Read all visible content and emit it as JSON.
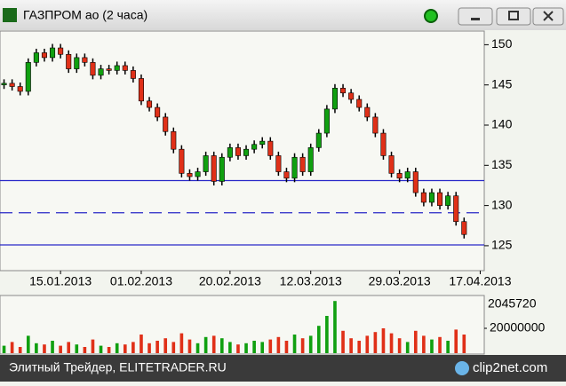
{
  "window": {
    "title": "ГАЗПРОМ ао (2 часа)"
  },
  "footer": {
    "text": "Элитный Трейдер, ELITETRADER.RU",
    "logo": "clip2net.com"
  },
  "chart_data": [
    {
      "type": "candlestick",
      "open": [
        145.0,
        145.2,
        144.8,
        144.2,
        147.8,
        149.0,
        148.4,
        149.6,
        148.8,
        147.0,
        148.4,
        147.8,
        146.2,
        147.0,
        146.8,
        147.4,
        146.8,
        145.8,
        143.0,
        142.2,
        141.0,
        139.2,
        137.0,
        134.0,
        133.6,
        134.2,
        136.2,
        133.0,
        136.0,
        137.2,
        136.2,
        137.0,
        137.6,
        138.0,
        136.2,
        134.2,
        133.4,
        136.0,
        134.2,
        137.2,
        139.0,
        142.0,
        144.6,
        144.0,
        143.2,
        142.2,
        141.0,
        139.0,
        136.2,
        134.0,
        133.4,
        134.2,
        131.6,
        130.4,
        131.6,
        130.0,
        131.2,
        128.0
      ],
      "high": [
        145.7,
        145.7,
        145.3,
        148.3,
        149.5,
        149.5,
        150.1,
        150.1,
        149.3,
        148.9,
        148.9,
        148.3,
        147.5,
        147.5,
        147.9,
        147.9,
        147.3,
        146.3,
        143.5,
        142.7,
        141.5,
        139.7,
        137.5,
        134.5,
        134.7,
        136.7,
        136.7,
        136.5,
        137.7,
        137.7,
        137.5,
        138.1,
        138.5,
        138.5,
        136.7,
        134.7,
        136.5,
        136.5,
        137.7,
        139.5,
        142.5,
        145.1,
        145.1,
        144.5,
        143.7,
        142.7,
        141.5,
        139.5,
        136.7,
        134.5,
        134.7,
        134.7,
        132.1,
        132.1,
        132.1,
        131.7,
        131.7,
        128.5
      ],
      "low": [
        144.5,
        144.3,
        143.7,
        143.7,
        147.3,
        147.9,
        147.9,
        148.3,
        146.5,
        146.5,
        147.3,
        145.7,
        145.7,
        146.3,
        146.3,
        146.3,
        145.3,
        142.5,
        141.7,
        140.5,
        138.7,
        136.5,
        133.5,
        133.1,
        133.1,
        133.7,
        132.5,
        132.5,
        135.5,
        135.7,
        135.7,
        136.5,
        137.1,
        135.7,
        133.7,
        132.9,
        132.9,
        133.7,
        133.7,
        136.7,
        138.5,
        141.5,
        143.5,
        142.7,
        141.7,
        140.5,
        138.5,
        135.7,
        133.5,
        132.9,
        132.9,
        131.1,
        129.9,
        129.9,
        129.5,
        129.5,
        127.5,
        125.9
      ],
      "close": [
        145.2,
        144.8,
        144.2,
        147.8,
        149.0,
        148.4,
        149.6,
        148.8,
        147.0,
        148.4,
        147.8,
        146.2,
        147.0,
        146.8,
        147.4,
        146.8,
        145.8,
        143.0,
        142.2,
        141.0,
        139.2,
        137.0,
        134.0,
        133.6,
        134.2,
        136.2,
        133.0,
        136.0,
        137.2,
        136.2,
        137.0,
        137.6,
        138.0,
        136.2,
        134.2,
        133.4,
        136.0,
        134.2,
        137.2,
        139.0,
        142.0,
        144.6,
        144.0,
        143.2,
        142.2,
        141.0,
        139.0,
        136.2,
        134.0,
        133.4,
        134.2,
        131.6,
        130.4,
        131.6,
        130.0,
        131.2,
        128.0,
        126.4
      ],
      "up_color": "#10a010",
      "down_color": "#e03018",
      "xlim": [
        -0.5,
        59.5
      ],
      "xticks": [
        {
          "value": 7,
          "label": "15.01.2013"
        },
        {
          "value": 17,
          "label": "01.02.2013"
        },
        {
          "value": 28,
          "label": "20.02.2013"
        },
        {
          "value": 38,
          "label": "12.03.2013"
        },
        {
          "value": 49,
          "label": "29.03.2013"
        },
        {
          "value": 59,
          "label": "17.04.2013"
        }
      ],
      "ylim": [
        121.9,
        151.7
      ],
      "yticks": [
        125,
        130,
        135,
        140,
        145,
        150
      ],
      "levels": [
        {
          "value": 133.1,
          "style": "solid"
        },
        {
          "value": 129.1,
          "style": "dashed"
        },
        {
          "value": 125.1,
          "style": "solid"
        }
      ],
      "level_color": "#2828c8"
    },
    {
      "type": "volume",
      "values": [
        6000000,
        9000000,
        5000000,
        14000000,
        8000000,
        7000000,
        10000000,
        6000000,
        9000000,
        7000000,
        5000000,
        11000000,
        6000000,
        5000000,
        8000000,
        7000000,
        9000000,
        15000000,
        8000000,
        10000000,
        12000000,
        9000000,
        16000000,
        11000000,
        8000000,
        13000000,
        14000000,
        12000000,
        9000000,
        7000000,
        8000000,
        10000000,
        9000000,
        11000000,
        13000000,
        10000000,
        15000000,
        12000000,
        14000000,
        22000000,
        30000000,
        42000000,
        18000000,
        12000000,
        10000000,
        14000000,
        17000000,
        20000000,
        16000000,
        12000000,
        9000000,
        18000000,
        14000000,
        11000000,
        13000000,
        10000000,
        19000000,
        15000000
      ],
      "scale_max_label": "2045720",
      "xlim": [
        -0.5,
        59.5
      ],
      "ylim": [
        0,
        45000000
      ],
      "yticks": [
        20000000
      ]
    }
  ]
}
